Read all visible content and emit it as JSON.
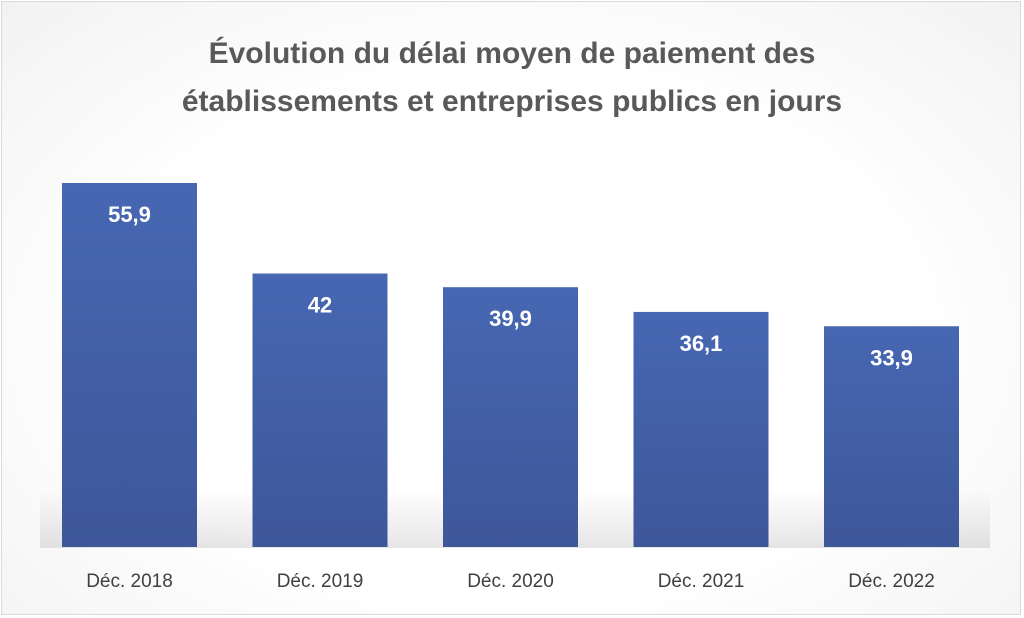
{
  "chart_data": {
    "type": "bar",
    "title_line1": "Évolution du délai moyen de paiement des",
    "title_line2": "établissements et entreprises publics en jours",
    "categories": [
      "Déc. 2018",
      "Déc. 2019",
      "Déc. 2020",
      "Déc. 2021",
      "Déc. 2022"
    ],
    "values": [
      55.9,
      42,
      39.9,
      36.1,
      33.9
    ],
    "value_labels": [
      "55,9",
      "42",
      "39,9",
      "36,1",
      "33,9"
    ],
    "xlabel": "",
    "ylabel": "",
    "ylim": [
      0,
      56
    ],
    "grid": false,
    "bar_color": "#4767b3",
    "bar_color_dark": "#3d5799"
  }
}
